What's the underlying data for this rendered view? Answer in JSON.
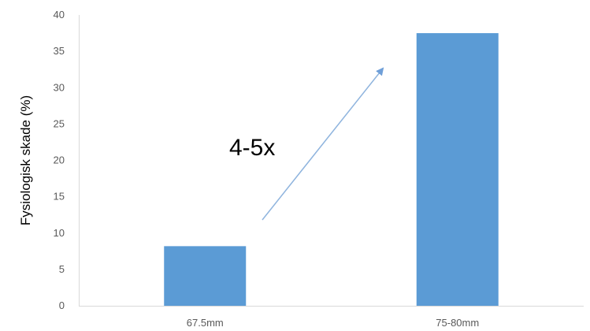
{
  "chart_data": {
    "type": "bar",
    "categories": [
      "67.5mm",
      "75-80mm"
    ],
    "values": [
      8.2,
      37.5
    ],
    "xlabel": "",
    "ylabel": "Fysiologisk skade (%)",
    "ylim": [
      0,
      40
    ],
    "yticks": [
      0,
      5,
      10,
      15,
      20,
      25,
      30,
      35,
      40
    ],
    "grid": false,
    "legend": "none",
    "bar_color": "#5B9BD5",
    "annotation": {
      "text": "4-5x",
      "arrow": true,
      "arrow_color": "#8FB4DE"
    }
  }
}
